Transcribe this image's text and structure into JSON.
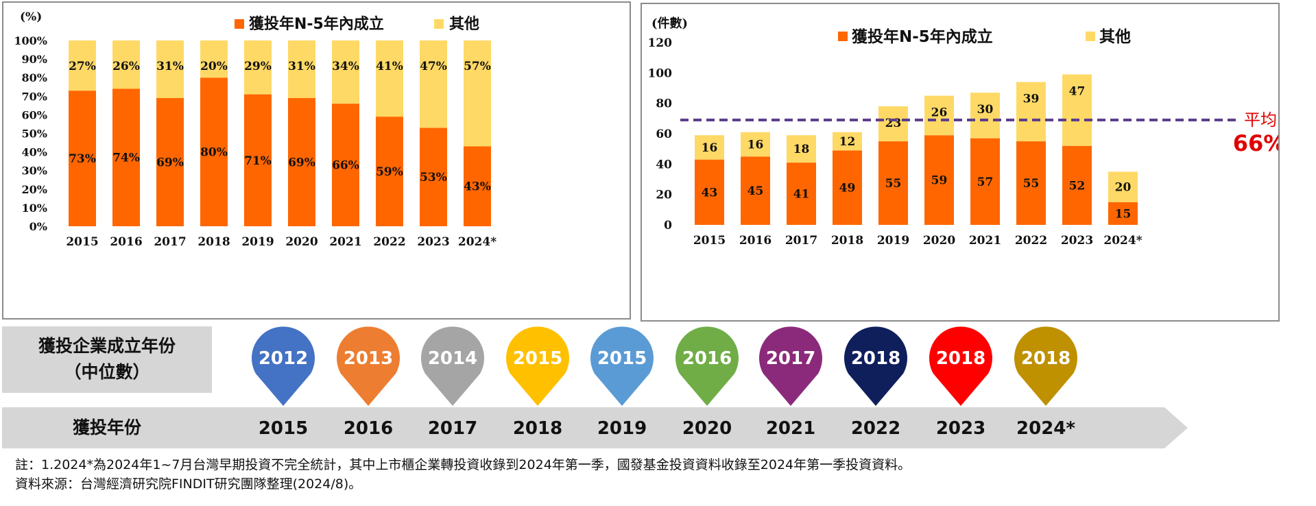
{
  "left_chart": {
    "unit_label": "(%)",
    "legend": [
      "獲投年N-5年內成立",
      "其他"
    ],
    "y_ticks": [
      "0%",
      "10%",
      "20%",
      "30%",
      "40%",
      "50%",
      "60%",
      "70%",
      "80%",
      "90%",
      "100%"
    ]
  },
  "right_chart": {
    "unit_label": "(件數)",
    "legend": [
      "獲投年N-5年內成立",
      "其他"
    ],
    "y_ticks": [
      "0",
      "20",
      "40",
      "60",
      "80",
      "100",
      "120"
    ],
    "avg_label": "平均",
    "avg_value_label": "66%"
  },
  "chart_data": [
    {
      "type": "bar",
      "stacked": true,
      "percent": true,
      "categories": [
        "2015",
        "2016",
        "2017",
        "2018",
        "2019",
        "2020",
        "2021",
        "2022",
        "2023",
        "2024*"
      ],
      "series": [
        {
          "name": "獲投年N-5年內成立",
          "values": [
            73,
            74,
            69,
            80,
            71,
            69,
            66,
            59,
            53,
            43
          ],
          "labels": [
            "73%",
            "74%",
            "69%",
            "80%",
            "71%",
            "69%",
            "66%",
            "59%",
            "53%",
            "43%"
          ],
          "color": "#ff6600"
        },
        {
          "name": "其他",
          "values": [
            27,
            26,
            31,
            20,
            29,
            31,
            34,
            41,
            47,
            57
          ],
          "labels": [
            "27%",
            "26%",
            "31%",
            "20%",
            "29%",
            "31%",
            "34%",
            "41%",
            "47%",
            "57%"
          ],
          "color": "#ffd966"
        }
      ],
      "ylabel": "(%)",
      "ylim": [
        0,
        100
      ],
      "grid": false,
      "legend_position": "top"
    },
    {
      "type": "bar",
      "stacked": true,
      "categories": [
        "2015",
        "2016",
        "2017",
        "2018",
        "2019",
        "2020",
        "2021",
        "2022",
        "2023",
        "2024*"
      ],
      "series": [
        {
          "name": "獲投年N-5年內成立",
          "values": [
            43,
            45,
            41,
            49,
            55,
            59,
            57,
            55,
            52,
            15
          ],
          "color": "#ff6600"
        },
        {
          "name": "其他",
          "values": [
            16,
            16,
            18,
            12,
            23,
            26,
            30,
            39,
            47,
            20
          ],
          "color": "#ffd966"
        }
      ],
      "reference_line": {
        "y": 69,
        "color": "#5b3f8c"
      },
      "ylabel": "(件數)",
      "ylim": [
        0,
        120
      ],
      "grid": false,
      "legend_position": "top"
    }
  ],
  "median_section": {
    "label_line1": "獲投企業成立年份",
    "label_line2": "（中位數）",
    "pins": [
      {
        "value": "2012",
        "color": "#4472c4"
      },
      {
        "value": "2013",
        "color": "#ed7d31"
      },
      {
        "value": "2014",
        "color": "#a5a5a5"
      },
      {
        "value": "2015",
        "color": "#ffc000"
      },
      {
        "value": "2015",
        "color": "#5b9bd5"
      },
      {
        "value": "2016",
        "color": "#70ad47"
      },
      {
        "value": "2017",
        "color": "#8b2a7a"
      },
      {
        "value": "2018",
        "color": "#0f1f5c"
      },
      {
        "value": "2018",
        "color": "#ff0000"
      },
      {
        "value": "2018",
        "color": "#bf9000"
      }
    ]
  },
  "timeline": {
    "label": "獲投年份",
    "years": [
      "2015",
      "2016",
      "2017",
      "2018",
      "2019",
      "2020",
      "2021",
      "2022",
      "2023",
      "2024*"
    ]
  },
  "footnote": {
    "line1": "註：1.2024*為2024年1~7月台灣早期投資不完全統計，其中上市櫃企業轉投資收錄到2024年第一季，國發基金投資資料收錄至2024年第一季投資資料。",
    "line2": "資料來源：台灣經濟研究院FINDIT研究團隊整理(2024/8)。"
  }
}
